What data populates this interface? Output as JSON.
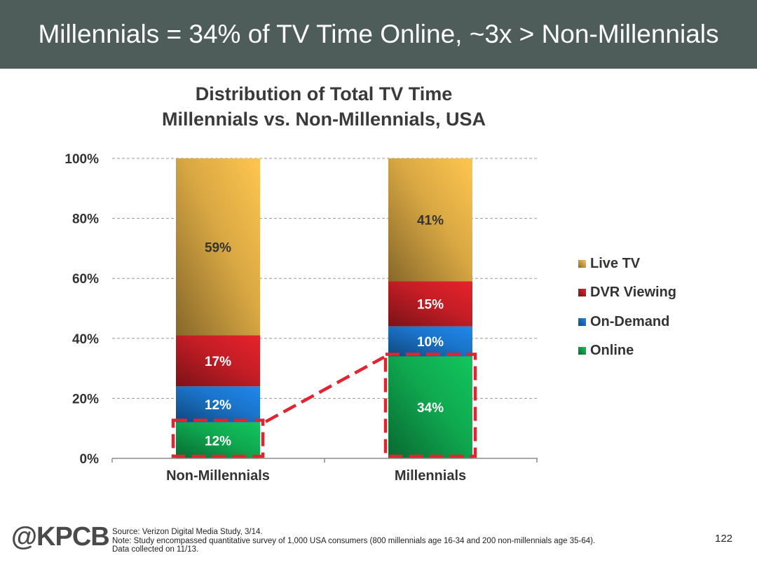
{
  "header": {
    "title": "Millennials = 34% of TV Time Online, ~3x > Non-Millennials"
  },
  "chart_data": {
    "type": "bar",
    "stacked": true,
    "title": [
      "Distribution of Total TV Time",
      "Millennials vs. Non-Millennials, USA"
    ],
    "xlabel": "",
    "ylabel": "",
    "categories": [
      "Non-Millennials",
      "Millennials"
    ],
    "y_ticks": [
      "0%",
      "20%",
      "40%",
      "60%",
      "80%",
      "100%"
    ],
    "ylim": [
      0,
      100
    ],
    "grid": true,
    "legend_position": "right",
    "series": [
      {
        "name": "Online",
        "values": [
          12,
          34
        ],
        "labels": [
          "12%",
          "34%"
        ],
        "color": "#0fa84f",
        "label_color": "#ffffff"
      },
      {
        "name": "On-Demand",
        "values": [
          12,
          10
        ],
        "labels": [
          "12%",
          "10%"
        ],
        "color": "#1a73c9",
        "label_color": "#ffffff"
      },
      {
        "name": "DVR Viewing",
        "values": [
          17,
          15
        ],
        "labels": [
          "17%",
          "15%"
        ],
        "color": "#c41d25",
        "label_color": "#ffffff"
      },
      {
        "name": "Live TV",
        "values": [
          59,
          41
        ],
        "labels": [
          "59%",
          "41%"
        ],
        "color": "#d9a843",
        "label_color": "#333333"
      }
    ],
    "legend_order": [
      "Live TV",
      "DVR Viewing",
      "On-Demand",
      "Online"
    ],
    "highlight": {
      "series": "Online",
      "style": "dashed-red-box-with-connector",
      "color": "#e02430"
    }
  },
  "footer": {
    "logo": "@KPCB",
    "source_lines": [
      "Source: Verizon Digital Media Study, 3/14.",
      "Note: Study encompassed quantitative survey of 1,000 USA consumers (800 millennials age 16-34 and 200 non-millennials age 35-64).",
      "Data collected on 11/13."
    ],
    "page_number": "122"
  }
}
